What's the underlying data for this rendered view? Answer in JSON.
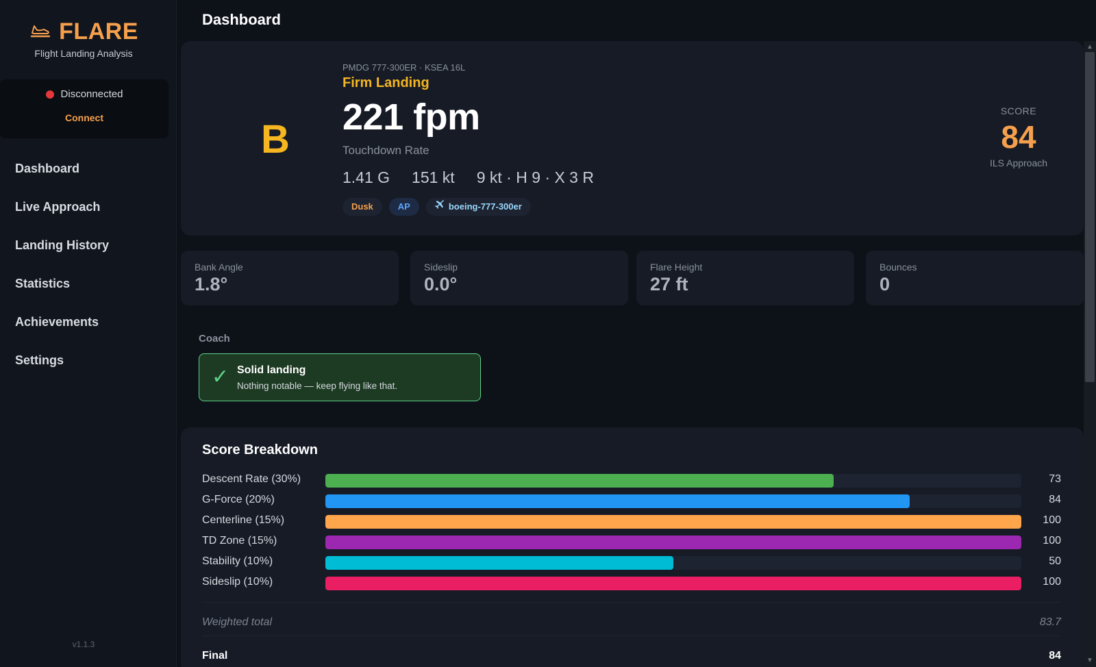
{
  "brand": {
    "title": "FLARE",
    "subtitle": "Flight Landing Analysis",
    "accent": "#f6a04d"
  },
  "connection": {
    "status": "Disconnected",
    "status_color": "#e5383b",
    "action": "Connect"
  },
  "nav": [
    {
      "label": "Dashboard"
    },
    {
      "label": "Live Approach"
    },
    {
      "label": "Landing History"
    },
    {
      "label": "Statistics"
    },
    {
      "label": "Achievements"
    },
    {
      "label": "Settings"
    }
  ],
  "version": "v1.1.3",
  "page_title": "Dashboard",
  "hero": {
    "grade": "B",
    "meta": "PMDG 777-300ER · KSEA 16L",
    "verdict": "Firm Landing",
    "rate": "221 fpm",
    "rate_label": "Touchdown Rate",
    "g_force": "1.41 G",
    "speed": "151 kt",
    "wind": "9 kt · H 9 · X 3 R",
    "chips": {
      "time": "Dusk",
      "autopilot": "AP",
      "aircraft": "boeing-777-300er"
    },
    "score_label": "SCORE",
    "score": "84",
    "approach": "ILS Approach"
  },
  "metrics": [
    {
      "label": "Bank Angle",
      "value": "1.8°"
    },
    {
      "label": "Sideslip",
      "value": "0.0°"
    },
    {
      "label": "Flare Height",
      "value": "27 ft"
    },
    {
      "label": "Bounces",
      "value": "0"
    }
  ],
  "coach": {
    "label": "Coach",
    "icon": "check-icon",
    "title": "Solid landing",
    "text": "Nothing notable — keep flying like that."
  },
  "breakdown": {
    "title": "Score Breakdown",
    "rows": [
      {
        "label": "Descent Rate (30%)",
        "value": "73",
        "fraction": 0.73,
        "color": "#4caf50"
      },
      {
        "label": "G-Force (20%)",
        "value": "84",
        "fraction": 0.84,
        "color": "#2196f3"
      },
      {
        "label": "Centerline (15%)",
        "value": "100",
        "fraction": 1.0,
        "color": "#ffa64d"
      },
      {
        "label": "TD Zone (15%)",
        "value": "100",
        "fraction": 1.0,
        "color": "#9c27b0"
      },
      {
        "label": "Stability (10%)",
        "value": "50",
        "fraction": 0.5,
        "color": "#00bcd4"
      },
      {
        "label": "Sideslip (10%)",
        "value": "100",
        "fraction": 1.0,
        "color": "#e91e63"
      }
    ],
    "weighted_label": "Weighted total",
    "weighted_value": "83.7",
    "final_label": "Final",
    "final_value": "84"
  }
}
